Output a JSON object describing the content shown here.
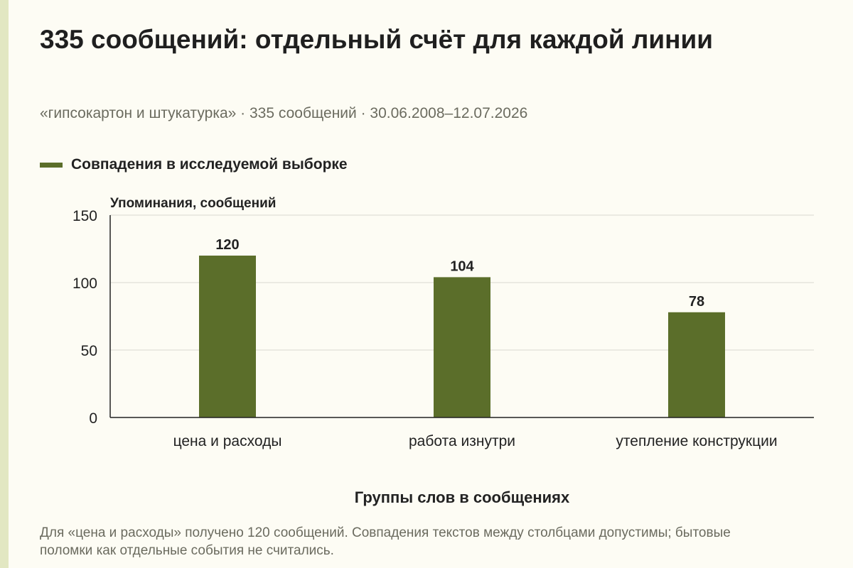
{
  "title": "335 сообщений: отдельный счёт для каждой линии",
  "subtitle": "«гипсокартон и штукатурка» · 335 сообщений · 30.06.2008–12.07.2026",
  "note": "Для «цена и расходы» получено 120 сообщений. Совпадения текстов между столбцами допустимы; бытовые поломки как отдельные события не считались.",
  "colors": {
    "bar": "#5b6e2a",
    "background": "#fdfcf4",
    "accent_strip": "#e2e7c2",
    "grid": "#d9d9d0"
  },
  "chart_data": {
    "type": "bar",
    "title": "335 сообщений: отдельный счёт для каждой линии",
    "xlabel": "Группы слов в сообщениях",
    "ylabel": "Упоминания, сообщений",
    "categories": [
      "цена и расходы",
      "работа изнутри",
      "утепление конструкции"
    ],
    "series": [
      {
        "name": "Совпадения в исследуемой выборке",
        "values": [
          120,
          104,
          78
        ]
      }
    ],
    "ylim": [
      0,
      150
    ],
    "yticks": [
      0,
      50,
      100,
      150
    ],
    "grid": true,
    "legend": "top-left",
    "data_labels": true
  }
}
